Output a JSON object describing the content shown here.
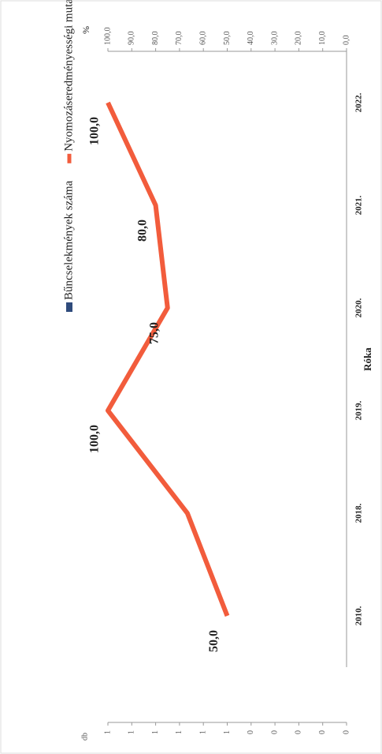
{
  "chart_data": {
    "type": "bar",
    "title": "Róka",
    "categories": [
      "2010.",
      "2018.",
      "2019.",
      "2020.",
      "2021.",
      "2022."
    ],
    "series": [
      {
        "name": "Bűncselekmények száma",
        "color": "#2f4b7c",
        "type": "bar",
        "axis": "y",
        "values": [
          0,
          0,
          0,
          0,
          0,
          0
        ]
      },
      {
        "name": "Nyomozáseredményességi mutató (%)",
        "color": "#f25c3c",
        "type": "line",
        "axis": "y2",
        "values": [
          50,
          66.7,
          100,
          75,
          80,
          100
        ],
        "value_labels": [
          "50,0",
          null,
          "100,0",
          "75,0",
          "80,0",
          "100,0"
        ]
      }
    ],
    "y_label": "db",
    "y2_label": "%",
    "ylim": [
      0,
      1
    ],
    "yticks": [
      {
        "value": 0,
        "label": "0"
      },
      {
        "value": 0.1,
        "label": "0"
      },
      {
        "value": 0.2,
        "label": "0"
      },
      {
        "value": 0.3,
        "label": "0"
      },
      {
        "value": 0.4,
        "label": "0"
      },
      {
        "value": 0.5,
        "label": "1"
      },
      {
        "value": 0.6,
        "label": "1"
      },
      {
        "value": 0.7,
        "label": "1"
      },
      {
        "value": 0.8,
        "label": "1"
      },
      {
        "value": 0.9,
        "label": "1"
      },
      {
        "value": 1,
        "label": "1"
      }
    ],
    "y2lim": [
      0,
      100
    ],
    "y2ticks": [
      {
        "value": 0,
        "label": "0,0"
      },
      {
        "value": 10,
        "label": "10,0"
      },
      {
        "value": 20,
        "label": "20,0"
      },
      {
        "value": 30,
        "label": "30,0"
      },
      {
        "value": 40,
        "label": "40,0"
      },
      {
        "value": 50,
        "label": "50,0"
      },
      {
        "value": 60,
        "label": "60,0"
      },
      {
        "value": 70,
        "label": "70,0"
      },
      {
        "value": 80,
        "label": "80,0"
      },
      {
        "value": 90,
        "label": "90,0"
      },
      {
        "value": 100,
        "label": "100,0"
      }
    ]
  }
}
